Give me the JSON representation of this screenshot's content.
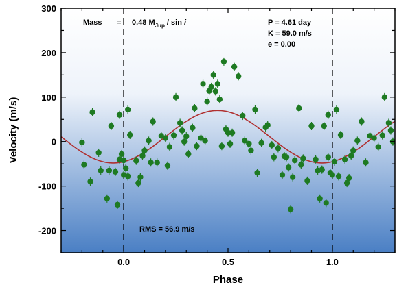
{
  "chart_data": {
    "type": "scatter",
    "xlabel": "Phase",
    "ylabel": "Velocity (m/s)",
    "xlim": [
      -0.3,
      1.3
    ],
    "ylim": [
      -250,
      300
    ],
    "x_ticks": [
      "0.0",
      "0.5",
      "1.0"
    ],
    "x_tick_values": [
      0,
      0.5,
      1.0
    ],
    "y_ticks": [
      "300",
      "200",
      "100",
      "0",
      "-100",
      "-200"
    ],
    "y_tick_values": [
      300,
      200,
      100,
      0,
      -100,
      -200
    ],
    "phase_markers": [
      0,
      1.0
    ],
    "grid": false,
    "background": "vertical gradient, white at top to blue at bottom",
    "annotations": {
      "mass_label": "Mass",
      "mass_eq": "=",
      "mass_value": "0.48 M",
      "mass_sub": "Jup",
      "mass_tail": " / sin ",
      "mass_i": "i",
      "period": "P = 4.61 day",
      "semi_amplitude": "K = 59.0 m/s",
      "eccentricity": "e = 0.00",
      "rms": "RMS = 56.9 m/s"
    },
    "model_curve": {
      "shape": "sinusoid",
      "mean": 11,
      "amplitude": 59,
      "peak_phase": 0.45
    },
    "points": [
      {
        "x": -0.2,
        "y": -2
      },
      {
        "x": -0.19,
        "y": -52
      },
      {
        "x": -0.16,
        "y": -90
      },
      {
        "x": -0.15,
        "y": 66
      },
      {
        "x": -0.12,
        "y": -25
      },
      {
        "x": -0.11,
        "y": -65
      },
      {
        "x": -0.08,
        "y": -128
      },
      {
        "x": -0.07,
        "y": -65
      },
      {
        "x": -0.06,
        "y": 35
      },
      {
        "x": -0.04,
        "y": -68
      },
      {
        "x": -0.03,
        "y": -142
      },
      {
        "x": -0.02,
        "y": 60
      },
      {
        "x": -0.02,
        "y": -40
      },
      {
        "x": -0.01,
        "y": -28
      },
      {
        "x": 0.0,
        "y": -75
      },
      {
        "x": 0.0,
        "y": -42
      },
      {
        "x": 0.01,
        "y": -60
      },
      {
        "x": 0.02,
        "y": 72
      },
      {
        "x": 0.02,
        "y": -78
      },
      {
        "x": 0.03,
        "y": 15
      },
      {
        "x": 0.06,
        "y": -43
      },
      {
        "x": 0.07,
        "y": -93
      },
      {
        "x": 0.08,
        "y": -80
      },
      {
        "x": 0.09,
        "y": -32
      },
      {
        "x": 0.1,
        "y": -20
      },
      {
        "x": 0.12,
        "y": 2
      },
      {
        "x": 0.13,
        "y": -47
      },
      {
        "x": 0.14,
        "y": 45
      },
      {
        "x": 0.16,
        "y": -47
      },
      {
        "x": 0.18,
        "y": 13
      },
      {
        "x": 0.2,
        "y": 8
      },
      {
        "x": 0.21,
        "y": -54
      },
      {
        "x": 0.22,
        "y": -12
      },
      {
        "x": 0.24,
        "y": 14
      },
      {
        "x": 0.25,
        "y": 100
      },
      {
        "x": 0.27,
        "y": 42
      },
      {
        "x": 0.28,
        "y": 25
      },
      {
        "x": 0.29,
        "y": 0
      },
      {
        "x": 0.3,
        "y": 12
      },
      {
        "x": 0.31,
        "y": -28
      },
      {
        "x": 0.33,
        "y": 31
      },
      {
        "x": 0.34,
        "y": 75
      },
      {
        "x": 0.35,
        "y": -10
      },
      {
        "x": 0.37,
        "y": 8
      },
      {
        "x": 0.38,
        "y": 130
      },
      {
        "x": 0.39,
        "y": 2
      },
      {
        "x": 0.4,
        "y": 90
      },
      {
        "x": 0.41,
        "y": 114
      },
      {
        "x": 0.42,
        "y": 123
      },
      {
        "x": 0.43,
        "y": 150
      },
      {
        "x": 0.44,
        "y": 113
      },
      {
        "x": 0.45,
        "y": 130
      },
      {
        "x": 0.46,
        "y": 95
      },
      {
        "x": 0.47,
        "y": -10
      },
      {
        "x": 0.48,
        "y": 180
      },
      {
        "x": 0.49,
        "y": 28
      },
      {
        "x": 0.5,
        "y": 20
      },
      {
        "x": 0.51,
        "y": -5
      },
      {
        "x": 0.52,
        "y": 20
      },
      {
        "x": 0.53,
        "y": 168
      },
      {
        "x": 0.55,
        "y": 147
      },
      {
        "x": 0.57,
        "y": 58
      },
      {
        "x": 0.58,
        "y": 2
      },
      {
        "x": 0.6,
        "y": -5
      },
      {
        "x": 0.61,
        "y": -20
      },
      {
        "x": 0.63,
        "y": 72
      },
      {
        "x": 0.64,
        "y": -70
      },
      {
        "x": 0.66,
        "y": -3
      },
      {
        "x": 0.68,
        "y": 32
      },
      {
        "x": 0.69,
        "y": 37
      },
      {
        "x": 0.71,
        "y": -8
      },
      {
        "x": 0.72,
        "y": -35
      },
      {
        "x": 0.74,
        "y": -15
      },
      {
        "x": 0.76,
        "y": -75
      },
      {
        "x": 0.77,
        "y": -33
      },
      {
        "x": 0.78,
        "y": -35
      },
      {
        "x": 0.79,
        "y": -58
      },
      {
        "x": 0.8,
        "y": -152
      },
      {
        "x": 0.81,
        "y": -80
      },
      {
        "x": 0.82,
        "y": -42
      },
      {
        "x": 0.84,
        "y": 75
      },
      {
        "x": 0.85,
        "y": -52
      },
      {
        "x": 0.86,
        "y": -38
      },
      {
        "x": 0.88,
        "y": -88
      },
      {
        "x": 0.9,
        "y": 35
      },
      {
        "x": 0.92,
        "y": -40
      },
      {
        "x": 0.93,
        "y": -65
      },
      {
        "x": 0.94,
        "y": -128
      },
      {
        "x": 0.95,
        "y": -63
      },
      {
        "x": 0.96,
        "y": 35
      },
      {
        "x": 0.97,
        "y": -138
      },
      {
        "x": 0.98,
        "y": 60
      },
      {
        "x": 0.98,
        "y": -35
      },
      {
        "x": 0.99,
        "y": -70
      },
      {
        "x": 1.0,
        "y": -75
      },
      {
        "x": 1.01,
        "y": -45
      },
      {
        "x": 1.02,
        "y": 72
      },
      {
        "x": 1.03,
        "y": -78
      },
      {
        "x": 1.04,
        "y": 15
      },
      {
        "x": 1.06,
        "y": -40
      },
      {
        "x": 1.07,
        "y": -93
      },
      {
        "x": 1.08,
        "y": -82
      },
      {
        "x": 1.09,
        "y": -32
      },
      {
        "x": 1.1,
        "y": -20
      },
      {
        "x": 1.12,
        "y": 2
      },
      {
        "x": 1.14,
        "y": 45
      },
      {
        "x": 1.16,
        "y": -47
      },
      {
        "x": 1.18,
        "y": 13
      },
      {
        "x": 1.2,
        "y": 8
      },
      {
        "x": 1.22,
        "y": -12
      },
      {
        "x": 1.24,
        "y": 14
      },
      {
        "x": 1.25,
        "y": 100
      },
      {
        "x": 1.27,
        "y": 42
      },
      {
        "x": 1.28,
        "y": 25
      },
      {
        "x": 1.29,
        "y": 0
      }
    ],
    "colors": {
      "points": "#1e7a22",
      "curve": "#b03030",
      "bg_top": "#ffffff",
      "bg_bottom": "#4a7fc4",
      "markers": "#000000"
    }
  }
}
